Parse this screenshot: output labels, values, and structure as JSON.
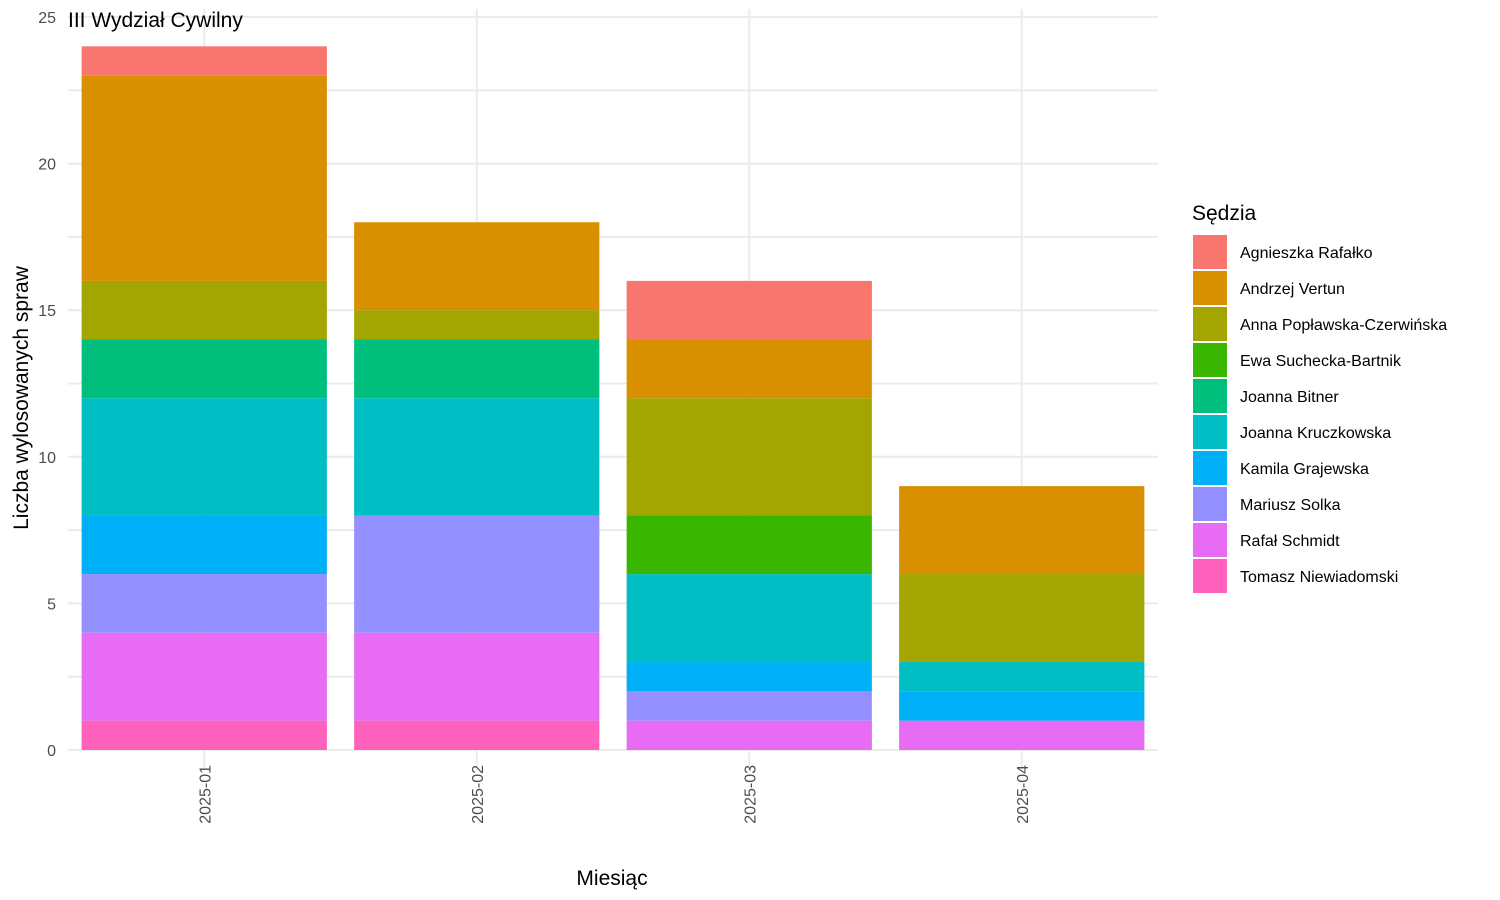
{
  "chart_data": {
    "type": "bar",
    "stacked": true,
    "title": "III Wydział Cywilny",
    "xlabel": "Miesiąc",
    "ylabel": "Liczba wylosowanych spraw",
    "ylim": [
      0,
      25
    ],
    "yticks": [
      0,
      5,
      10,
      15,
      20,
      25
    ],
    "grid": true,
    "legend_position": "right",
    "legend_title": "Sędzia",
    "categories": [
      "2025-01",
      "2025-02",
      "2025-03",
      "2025-04"
    ],
    "series": [
      {
        "name": "Agnieszka Rafałko",
        "color": "#F8766D",
        "values": [
          1,
          0,
          2,
          0
        ]
      },
      {
        "name": "Andrzej Vertun",
        "color": "#D89000",
        "values": [
          7,
          3,
          2,
          3
        ]
      },
      {
        "name": "Anna Popławska-Czerwińska",
        "color": "#A3A500",
        "values": [
          2,
          1,
          4,
          3
        ]
      },
      {
        "name": "Ewa Suchecka-Bartnik",
        "color": "#39B600",
        "values": [
          0,
          0,
          2,
          0
        ]
      },
      {
        "name": "Joanna Bitner",
        "color": "#00BF7D",
        "values": [
          2,
          2,
          0,
          0
        ]
      },
      {
        "name": "Joanna Kruczkowska",
        "color": "#00BFC4",
        "values": [
          4,
          4,
          3,
          1
        ]
      },
      {
        "name": "Kamila Grajewska",
        "color": "#00B0F6",
        "values": [
          2,
          0,
          1,
          1
        ]
      },
      {
        "name": "Mariusz Solka",
        "color": "#9590FF",
        "values": [
          2,
          4,
          1,
          0
        ]
      },
      {
        "name": "Rafał Schmidt",
        "color": "#E76BF3",
        "values": [
          3,
          3,
          1,
          1
        ]
      },
      {
        "name": "Tomasz Niewiadomski",
        "color": "#FF62BC",
        "values": [
          1,
          1,
          0,
          0
        ]
      }
    ]
  }
}
